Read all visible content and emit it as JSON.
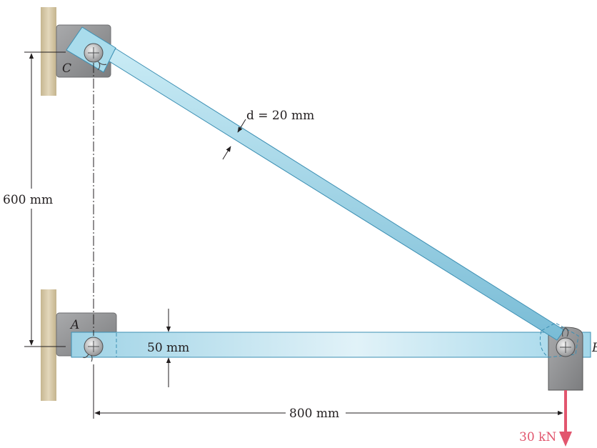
{
  "labels": {
    "point_c": "C",
    "point_a": "A",
    "point_b": "B",
    "rod_diameter": "d = 20 mm",
    "vertical_dim": "600 mm",
    "bar_thickness": "50 mm",
    "horizontal_dim": "800 mm",
    "load": "30 kN"
  },
  "colors": {
    "steel_fill": "#a9dcec",
    "steel_edge": "#3c8fb3",
    "wall": "#d7c9a7",
    "bracket": "#8c8d8f",
    "load_arrow": "#e2566e"
  }
}
